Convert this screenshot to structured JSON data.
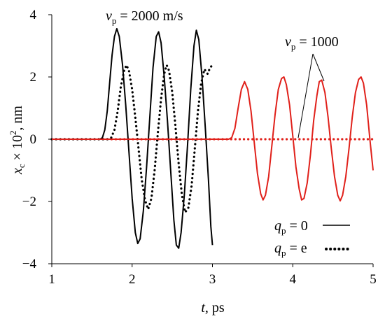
{
  "chart_data": {
    "type": "line",
    "xlabel": {
      "var": "t",
      "unit": ", ps"
    },
    "ylabel": {
      "var": "x",
      "sub": "c",
      "mid": " × 10",
      "sup": "2",
      "unit": ", nm"
    },
    "xlim": [
      1,
      5
    ],
    "ylim": [
      -4,
      4
    ],
    "xticks": [
      "1",
      "2",
      "3",
      "4",
      "5"
    ],
    "yticks": [
      "4",
      "2",
      "0",
      "−2",
      "−4"
    ],
    "annotations": {
      "vp2000": {
        "var": "v",
        "sub": "p",
        "text": " = 2000 m/s"
      },
      "vp1000": {
        "var": "v",
        "sub": "p",
        "text": " = 1000"
      },
      "legend0": {
        "var": "q",
        "sub": "p",
        "text": " = 0"
      },
      "legendE": {
        "var": "q",
        "sub": "p",
        "text": " = e"
      }
    },
    "series": [
      {
        "style": "solid",
        "color": "#000000",
        "points": [
          [
            1.0,
            0
          ],
          [
            1.6,
            0
          ],
          [
            1.63,
            0.05
          ],
          [
            1.66,
            0.3
          ],
          [
            1.69,
            0.9
          ],
          [
            1.72,
            1.8
          ],
          [
            1.75,
            2.7
          ],
          [
            1.78,
            3.3
          ],
          [
            1.81,
            3.55
          ],
          [
            1.84,
            3.3
          ],
          [
            1.88,
            2.4
          ],
          [
            1.92,
            1.1
          ],
          [
            1.96,
            -0.4
          ],
          [
            2.0,
            -1.9
          ],
          [
            2.04,
            -3.0
          ],
          [
            2.07,
            -3.35
          ],
          [
            2.1,
            -3.2
          ],
          [
            2.14,
            -2.3
          ],
          [
            2.18,
            -0.9
          ],
          [
            2.22,
            0.7
          ],
          [
            2.26,
            2.3
          ],
          [
            2.3,
            3.3
          ],
          [
            2.33,
            3.45
          ],
          [
            2.36,
            3.1
          ],
          [
            2.4,
            2.0
          ],
          [
            2.44,
            0.6
          ],
          [
            2.48,
            -1.0
          ],
          [
            2.52,
            -2.6
          ],
          [
            2.55,
            -3.4
          ],
          [
            2.58,
            -3.5
          ],
          [
            2.61,
            -3.0
          ],
          [
            2.65,
            -1.8
          ],
          [
            2.69,
            -0.2
          ],
          [
            2.73,
            1.6
          ],
          [
            2.77,
            3.0
          ],
          [
            2.8,
            3.5
          ],
          [
            2.83,
            3.2
          ],
          [
            2.87,
            2.0
          ],
          [
            2.91,
            0.4
          ],
          [
            2.95,
            -1.3
          ],
          [
            2.98,
            -2.8
          ],
          [
            3.0,
            -3.4
          ]
        ]
      },
      {
        "style": "dotted",
        "color": "#000000",
        "points": [
          [
            1.0,
            0
          ],
          [
            1.7,
            0
          ],
          [
            1.74,
            0.05
          ],
          [
            1.78,
            0.3
          ],
          [
            1.82,
            0.9
          ],
          [
            1.86,
            1.7
          ],
          [
            1.9,
            2.2
          ],
          [
            1.93,
            2.38
          ],
          [
            1.96,
            2.2
          ],
          [
            2.0,
            1.6
          ],
          [
            2.04,
            0.7
          ],
          [
            2.08,
            -0.3
          ],
          [
            2.12,
            -1.3
          ],
          [
            2.16,
            -1.95
          ],
          [
            2.2,
            -2.25
          ],
          [
            2.24,
            -1.9
          ],
          [
            2.28,
            -1.0
          ],
          [
            2.32,
            0.2
          ],
          [
            2.36,
            1.3
          ],
          [
            2.4,
            2.1
          ],
          [
            2.43,
            2.38
          ],
          [
            2.46,
            2.2
          ],
          [
            2.5,
            1.5
          ],
          [
            2.54,
            0.4
          ],
          [
            2.58,
            -0.8
          ],
          [
            2.62,
            -1.8
          ],
          [
            2.66,
            -2.35
          ],
          [
            2.7,
            -2.2
          ],
          [
            2.74,
            -1.5
          ],
          [
            2.78,
            -0.3
          ],
          [
            2.82,
            0.9
          ],
          [
            2.86,
            1.8
          ],
          [
            2.9,
            2.25
          ],
          [
            2.94,
            2.1
          ],
          [
            2.97,
            2.3
          ],
          [
            3.0,
            2.38
          ]
        ]
      },
      {
        "style": "solid",
        "color": "#e0201a",
        "points": [
          [
            1.0,
            0
          ],
          [
            3.2,
            0
          ],
          [
            3.24,
            0.05
          ],
          [
            3.28,
            0.35
          ],
          [
            3.32,
            1.0
          ],
          [
            3.36,
            1.6
          ],
          [
            3.4,
            1.85
          ],
          [
            3.44,
            1.6
          ],
          [
            3.48,
            0.9
          ],
          [
            3.52,
            -0.1
          ],
          [
            3.56,
            -1.1
          ],
          [
            3.6,
            -1.75
          ],
          [
            3.63,
            -1.95
          ],
          [
            3.66,
            -1.8
          ],
          [
            3.7,
            -1.2
          ],
          [
            3.74,
            -0.2
          ],
          [
            3.78,
            0.8
          ],
          [
            3.82,
            1.6
          ],
          [
            3.86,
            1.95
          ],
          [
            3.89,
            2.0
          ],
          [
            3.92,
            1.75
          ],
          [
            3.96,
            1.1
          ],
          [
            4.0,
            0.1
          ],
          [
            4.04,
            -0.9
          ],
          [
            4.08,
            -1.6
          ],
          [
            4.11,
            -1.95
          ],
          [
            4.14,
            -1.9
          ],
          [
            4.18,
            -1.4
          ],
          [
            4.22,
            -0.5
          ],
          [
            4.26,
            0.6
          ],
          [
            4.3,
            1.4
          ],
          [
            4.33,
            1.85
          ],
          [
            4.36,
            1.9
          ],
          [
            4.4,
            1.5
          ],
          [
            4.44,
            0.7
          ],
          [
            4.48,
            -0.3
          ],
          [
            4.52,
            -1.2
          ],
          [
            4.56,
            -1.8
          ],
          [
            4.59,
            -1.98
          ],
          [
            4.62,
            -1.8
          ],
          [
            4.66,
            -1.2
          ],
          [
            4.7,
            -0.3
          ],
          [
            4.74,
            0.7
          ],
          [
            4.78,
            1.5
          ],
          [
            4.82,
            1.92
          ],
          [
            4.85,
            2.0
          ],
          [
            4.88,
            1.8
          ],
          [
            4.92,
            1.1
          ],
          [
            4.96,
            0.0
          ],
          [
            5.0,
            -1.0
          ]
        ]
      },
      {
        "style": "dotted",
        "color": "#e0201a",
        "points": [
          [
            1.0,
            0
          ],
          [
            5.0,
            0
          ]
        ]
      }
    ]
  }
}
